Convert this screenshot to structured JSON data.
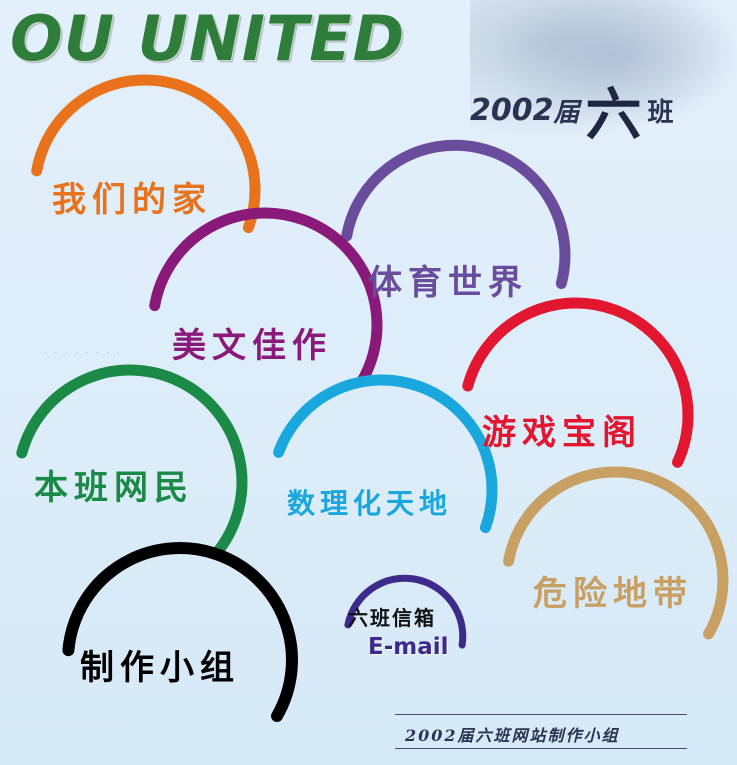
{
  "header": {
    "brand": "OU   UNITED",
    "year": "2002",
    "jie": "届",
    "class_big": "六",
    "class_small": "班"
  },
  "nav": [
    {
      "id": "home",
      "label": "我们的家",
      "color": "#e8731c"
    },
    {
      "id": "sports",
      "label": "体育世界",
      "color": "#6a4c9c"
    },
    {
      "id": "articles",
      "label": "美文佳作",
      "color": "#8a1a7a"
    },
    {
      "id": "games",
      "label": "游戏宝阁",
      "color": "#e3162f"
    },
    {
      "id": "netizens",
      "label": "本班网民",
      "color": "#1b8a47"
    },
    {
      "id": "science",
      "label": "数理化天地",
      "color": "#1aa7de"
    },
    {
      "id": "danger",
      "label": "危险地带",
      "color": "#c9a063"
    },
    {
      "id": "team",
      "label": "制作小组",
      "color": "#000000"
    }
  ],
  "email": {
    "title": "六班信箱",
    "link": "E-mail",
    "color": "#3d2a8a"
  },
  "decor_dots": "· · · · · · · ·",
  "footer": {
    "text": "2002届六班网站制作小组"
  }
}
